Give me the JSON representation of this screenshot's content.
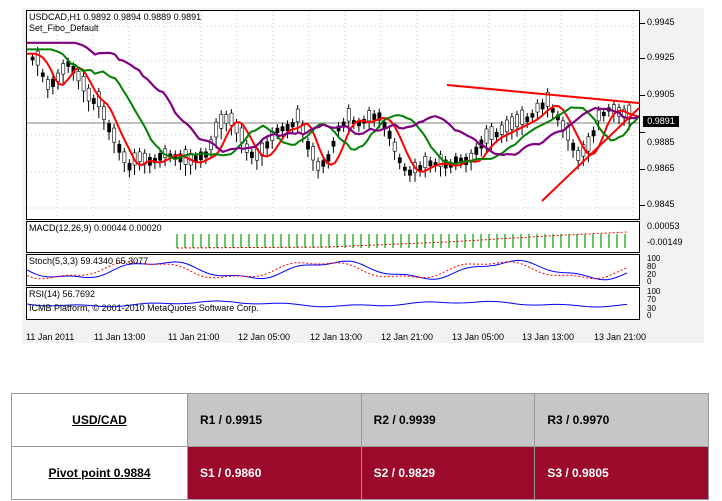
{
  "chart": {
    "header_symbol": "USDCAD,H1  0.9892 0.9894 0.9889 0.9891",
    "header_template": "Set_Fibo_Default",
    "current_price": "0.9891",
    "price_axis": [
      "0.9945",
      "0.9925",
      "0.9905",
      "0.9885",
      "0.9865",
      "0.9845"
    ],
    "macd_label": "MACD(12,26,9) 0.00044 0.00020",
    "macd_axis": [
      "0.00053",
      "-0.00149"
    ],
    "stoch_label": "Stoch(5,3,3) 59.4340 65.3077",
    "stoch_axis": [
      "100",
      "80",
      "20",
      "0"
    ],
    "rsi_label": "RSI(14) 56.7692",
    "rsi_axis": [
      "100",
      "70",
      "30",
      "0"
    ],
    "copyright": "ICMB Platform, © 2001-2010 MetaQuotes Software Corp.",
    "time_axis": [
      "11 Jan 2011",
      "11 Jan 13:00",
      "11 Jan 21:00",
      "12 Jan 05:00",
      "12 Jan 13:00",
      "12 Jan 21:00",
      "13 Jan 05:00",
      "13 Jan 13:00",
      "13 Jan 21:00"
    ],
    "colors": {
      "candle_up": "#ffffff",
      "candle_down": "#000000",
      "ma_fast": "#ff0000",
      "ma_mid": "#008000",
      "ma_slow": "#800080",
      "trendline": "#ff0000",
      "macd_hist": "#00a000",
      "signal": "#ff0000",
      "stoch_main": "#0000ff",
      "rsi": "#0000ff"
    }
  },
  "pivot": {
    "pair": "USD/CAD",
    "pivot_point": "Pivot point 0.9884",
    "r1": "R1 / 0.9915",
    "r2": "R2 / 0.9939",
    "r3": "R3 / 0.9970",
    "s1": "S1 / 0.9860",
    "s2": "S2 / 0.9829",
    "s3": "S3 / 0.9805",
    "colors": {
      "resistance_bg": "#c6c6c6",
      "support_bg": "#9b0a2a"
    }
  }
}
